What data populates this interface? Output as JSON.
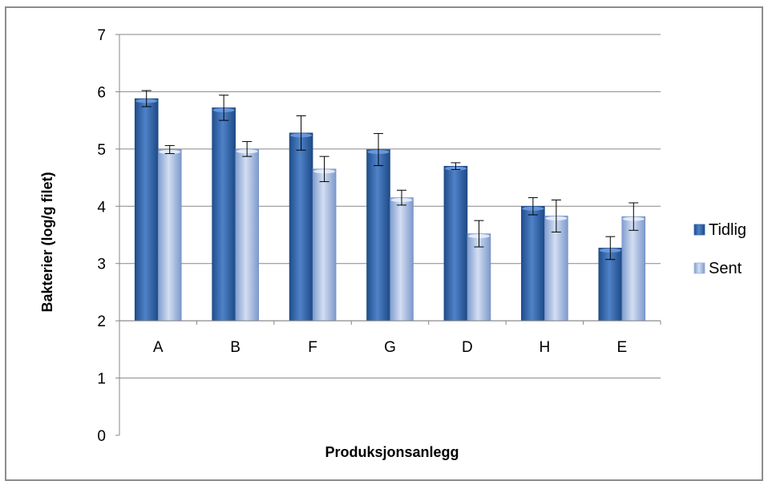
{
  "chart_data": {
    "type": "bar",
    "title": "",
    "xlabel": "Produksjonsanlegg",
    "ylabel": "Bakterier (log/g filet)",
    "ylim": [
      0,
      7
    ],
    "yticks": [
      "0",
      "1",
      "2",
      "3",
      "4",
      "5",
      "6",
      "7"
    ],
    "baseline": 2,
    "grid": true,
    "legend_position": "right",
    "categories": [
      "A",
      "B",
      "F",
      "G",
      "D",
      "H",
      "E"
    ],
    "series": [
      {
        "name": "Tidlig",
        "color": "#2e5fa3",
        "values": [
          5.88,
          5.72,
          5.28,
          4.99,
          4.7,
          4.0,
          3.27
        ],
        "error": [
          0.14,
          0.22,
          0.3,
          0.28,
          0.06,
          0.15,
          0.2
        ]
      },
      {
        "name": "Sent",
        "color": "#9db2dc",
        "values": [
          4.99,
          5.0,
          4.65,
          4.15,
          3.52,
          3.83,
          3.82
        ],
        "error": [
          0.07,
          0.13,
          0.22,
          0.13,
          0.23,
          0.28,
          0.24
        ]
      }
    ]
  }
}
